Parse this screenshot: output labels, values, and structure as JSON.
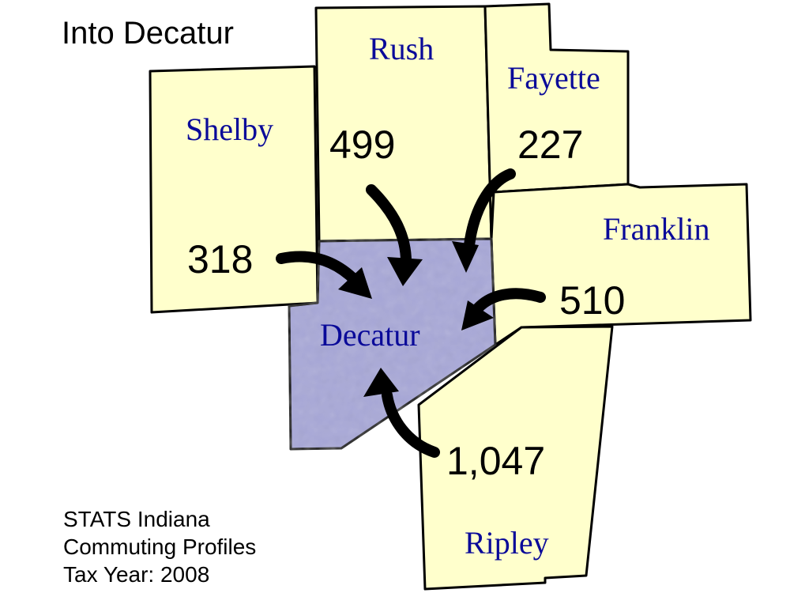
{
  "title": "Into Decatur",
  "destination": {
    "name": "Decatur",
    "color": "#a8a8d8"
  },
  "counties": [
    {
      "name": "Shelby",
      "commuters": "318"
    },
    {
      "name": "Rush",
      "commuters": "499"
    },
    {
      "name": "Fayette",
      "commuters": "227"
    },
    {
      "name": "Franklin",
      "commuters": "510"
    },
    {
      "name": "Ripley",
      "commuters": "1,047"
    }
  ],
  "source": {
    "line1": "STATS Indiana",
    "line2": "Commuting Profiles",
    "line3": "Tax Year: 2008"
  },
  "colors": {
    "county_fill": "#ffffcc",
    "label_color": "#0a0a99"
  }
}
